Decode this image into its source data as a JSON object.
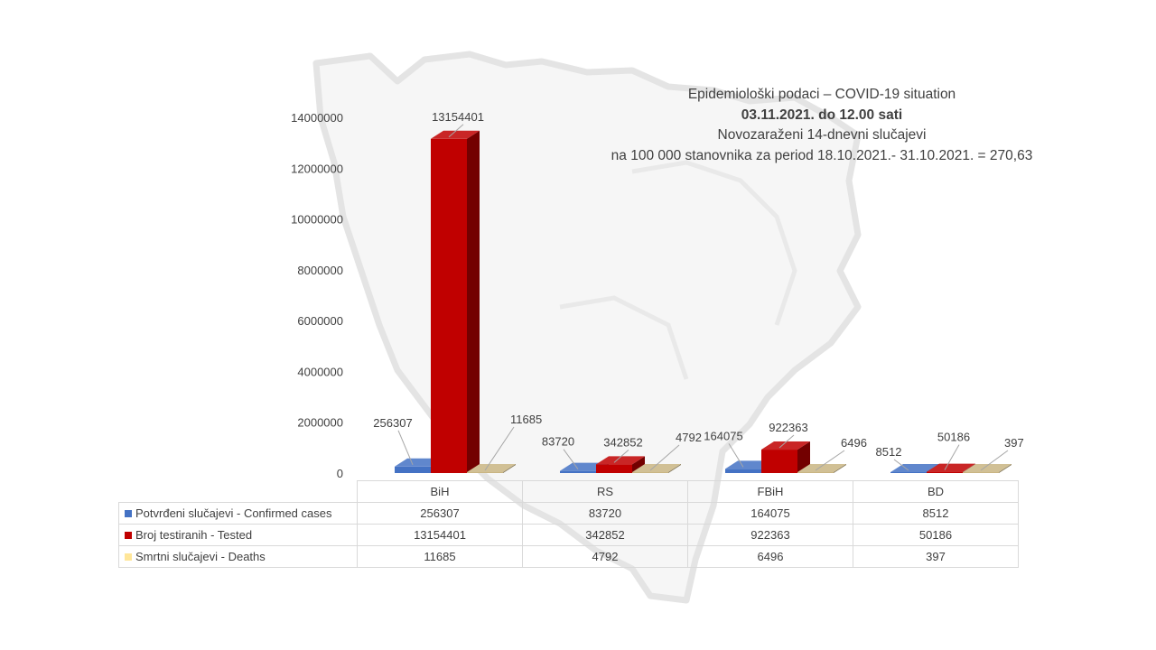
{
  "title": {
    "line1": "Epidemiološki podaci – COVID-19 situation",
    "line2": "03.11.2021. do 12.00 sati",
    "line3": "Novozaraženi 14-dnevni slučajevi",
    "line4": "na 100 000 stanovnika za period 18.10.2021.- 31.10.2021. = 270,63"
  },
  "chart_data": {
    "type": "bar",
    "style": "3d-clustered-column-with-data-table",
    "categories": [
      "BiH",
      "RS",
      "FBiH",
      "BD"
    ],
    "series": [
      {
        "name": "Potvrđeni slučajevi - Confirmed cases",
        "values": [
          256307,
          83720,
          164075,
          8512
        ],
        "color": "#4472c4"
      },
      {
        "name": "Broj testiranih - Tested",
        "values": [
          13154401,
          342852,
          922363,
          50186
        ],
        "color": "#c00000"
      },
      {
        "name": "Smrtni slučajevi - Deaths",
        "values": [
          11685,
          4792,
          6496,
          397
        ],
        "color": "#ffe699"
      }
    ],
    "ylim": [
      0,
      14000000
    ],
    "yticks": [
      0,
      2000000,
      4000000,
      6000000,
      8000000,
      10000000,
      12000000,
      14000000
    ],
    "ytick_labels": [
      "0",
      "2000000",
      "4000000",
      "6000000",
      "8000000",
      "10000000",
      "12000000",
      "14000000"
    ],
    "grid": false,
    "legend": "data-table-below"
  }
}
